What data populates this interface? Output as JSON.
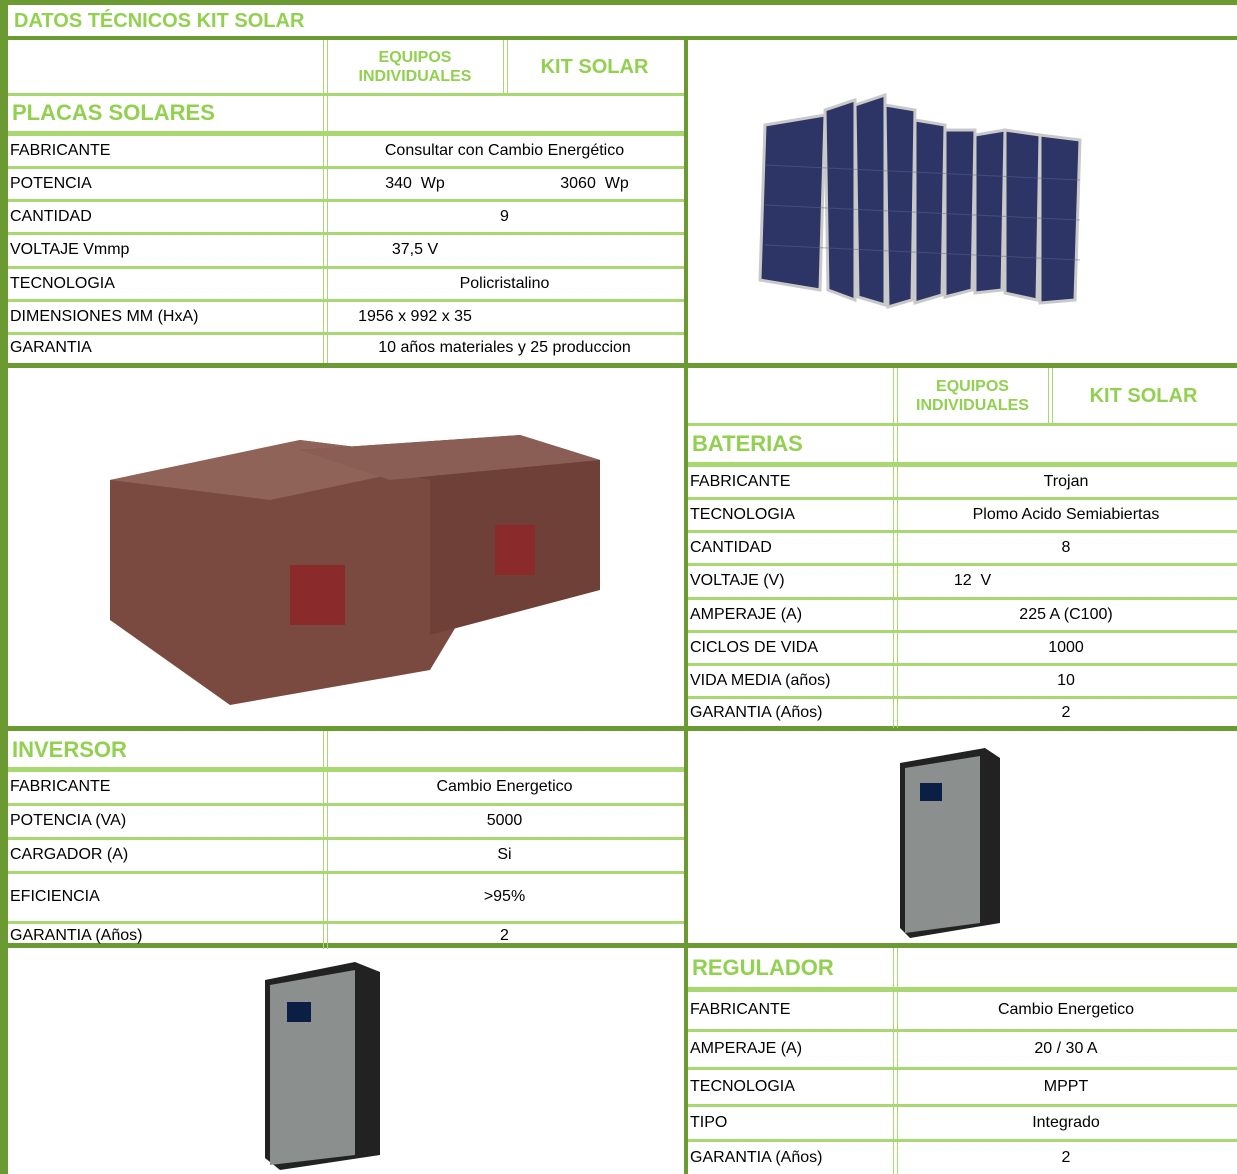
{
  "title": "DATOS TÉCNICOS KIT SOLAR",
  "placas": {
    "columns": [
      "EQUIPOS INDIVIDUALES",
      "KIT SOLAR"
    ],
    "heading": "PLACAS SOLARES",
    "rows": [
      [
        "FABRICANTE",
        "Consultar con Cambio Energético"
      ],
      [
        "POTENCIA",
        "340  Wp",
        "3060  Wp"
      ],
      [
        "CANTIDAD",
        "9"
      ],
      [
        "VOLTAJE Vmmp",
        "37,5 V"
      ],
      [
        "TECNOLOGIA",
        "Policristalino"
      ],
      [
        "DIMENSIONES MM (HxA)",
        "1956 x 992 x 35"
      ],
      [
        "GARANTIA",
        "10 años materiales y 25 produccion"
      ]
    ]
  },
  "baterias": {
    "columns": [
      "EQUIPOS INDIVIDUALES",
      "KIT SOLAR"
    ],
    "heading": "BATERIAS",
    "rows": [
      [
        "FABRICANTE",
        "Trojan"
      ],
      [
        "TECNOLOGIA",
        "Plomo Acido Semiabiertas"
      ],
      [
        "CANTIDAD",
        "8"
      ],
      [
        "VOLTAJE (V)",
        "12  V"
      ],
      [
        "AMPERAJE (A)",
        "225 A (C100)"
      ],
      [
        "CICLOS DE VIDA",
        "1000"
      ],
      [
        "VIDA MEDIA (años)",
        "10"
      ],
      [
        "GARANTIA (Años)",
        "2"
      ]
    ]
  },
  "inversor": {
    "heading": "INVERSOR",
    "rows": [
      [
        "FABRICANTE",
        "Cambio Energetico"
      ],
      [
        "POTENCIA (VA)",
        "5000"
      ],
      [
        "CARGADOR (A)",
        "Si"
      ],
      [
        "EFICIENCIA",
        ">95%"
      ],
      [
        "GARANTIA (Años)",
        "2"
      ]
    ]
  },
  "regulador": {
    "heading": "REGULADOR",
    "rows": [
      [
        "FABRICANTE",
        "Cambio Energetico"
      ],
      [
        "AMPERAJE (A)",
        "20 / 30 A"
      ],
      [
        "TECNOLOGIA",
        "MPPT"
      ],
      [
        "TIPO",
        "Integrado"
      ],
      [
        "GARANTIA (Años)",
        "2"
      ]
    ]
  }
}
